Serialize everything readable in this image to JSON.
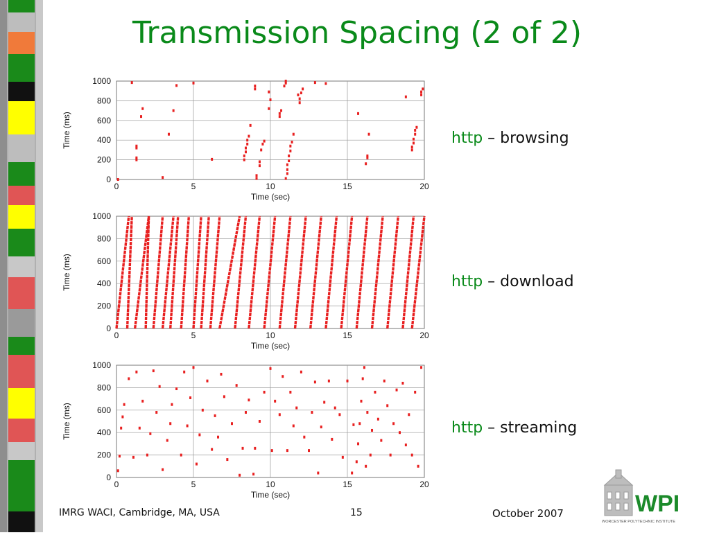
{
  "slide": {
    "title": "Transmission Spacing (2 of 2)",
    "labels": [
      {
        "protocol": "http",
        "rest": " – browsing"
      },
      {
        "protocol": "http",
        "rest": " – download"
      },
      {
        "protocol": "http",
        "rest": " – streaming"
      }
    ],
    "footer": {
      "left": "IMRG WACI, Cambridge, MA, USA",
      "page": "15",
      "date": "October 2007"
    },
    "logo": {
      "text": "WPI",
      "caption": "WORCESTER POLYTECHNIC INSTITUTE"
    }
  },
  "colors": {
    "title": "#0a8a1a",
    "marker": "#e82020",
    "grid": "#999999"
  },
  "chart_data": [
    {
      "type": "scatter",
      "name": "browsing",
      "xlabel": "Time (sec)",
      "ylabel": "Time (ms)",
      "xlim": [
        0,
        20
      ],
      "ylim": [
        0,
        1000
      ],
      "xticks": [
        0,
        5,
        10,
        15,
        20
      ],
      "yticks": [
        0,
        200,
        400,
        600,
        800,
        1000
      ],
      "grid": true,
      "points": [
        [
          0.1,
          0
        ],
        [
          1.0,
          985
        ],
        [
          1.3,
          200
        ],
        [
          1.3,
          220
        ],
        [
          1.3,
          320
        ],
        [
          1.3,
          340
        ],
        [
          1.6,
          640
        ],
        [
          1.7,
          720
        ],
        [
          3.0,
          20
        ],
        [
          3.4,
          460
        ],
        [
          3.7,
          700
        ],
        [
          3.9,
          955
        ],
        [
          5.0,
          980
        ],
        [
          6.2,
          205
        ],
        [
          8.3,
          200
        ],
        [
          8.3,
          240
        ],
        [
          8.4,
          280
        ],
        [
          8.4,
          320
        ],
        [
          8.5,
          360
        ],
        [
          8.5,
          400
        ],
        [
          8.6,
          440
        ],
        [
          8.7,
          550
        ],
        [
          9.0,
          920
        ],
        [
          9.0,
          950
        ],
        [
          9.1,
          10
        ],
        [
          9.1,
          40
        ],
        [
          9.3,
          140
        ],
        [
          9.3,
          180
        ],
        [
          9.4,
          300
        ],
        [
          9.5,
          360
        ],
        [
          9.6,
          390
        ],
        [
          9.9,
          720
        ],
        [
          9.9,
          890
        ],
        [
          10.0,
          810
        ],
        [
          10.6,
          640
        ],
        [
          10.6,
          670
        ],
        [
          10.7,
          700
        ],
        [
          10.9,
          950
        ],
        [
          11.0,
          980
        ],
        [
          11.0,
          1000
        ],
        [
          11.0,
          10
        ],
        [
          11.1,
          60
        ],
        [
          11.1,
          100
        ],
        [
          11.1,
          150
        ],
        [
          11.2,
          190
        ],
        [
          11.2,
          240
        ],
        [
          11.3,
          290
        ],
        [
          11.3,
          340
        ],
        [
          11.4,
          380
        ],
        [
          11.5,
          460
        ],
        [
          11.8,
          860
        ],
        [
          11.9,
          780
        ],
        [
          11.9,
          820
        ],
        [
          12.0,
          880
        ],
        [
          12.1,
          920
        ],
        [
          12.9,
          985
        ],
        [
          13.6,
          975
        ],
        [
          15.7,
          670
        ],
        [
          16.2,
          160
        ],
        [
          16.3,
          220
        ],
        [
          16.3,
          240
        ],
        [
          16.4,
          460
        ],
        [
          18.8,
          840
        ],
        [
          19.2,
          300
        ],
        [
          19.2,
          330
        ],
        [
          19.3,
          370
        ],
        [
          19.3,
          410
        ],
        [
          19.4,
          460
        ],
        [
          19.4,
          500
        ],
        [
          19.5,
          530
        ],
        [
          19.8,
          860
        ],
        [
          19.8,
          890
        ],
        [
          19.9,
          920
        ]
      ]
    },
    {
      "type": "scatter",
      "name": "download",
      "xlabel": "Time (sec)",
      "ylabel": "Time (ms)",
      "xlim": [
        0,
        20
      ],
      "ylim": [
        0,
        1000
      ],
      "xticks": [
        0,
        5,
        10,
        15,
        20
      ],
      "yticks": [
        0,
        200,
        400,
        600,
        800,
        1000
      ],
      "grid": true,
      "streaks": [
        [
          0.0,
          0.8
        ],
        [
          0.7,
          1.0
        ],
        [
          1.2,
          2.1
        ],
        [
          1.9,
          2.1
        ],
        [
          2.4,
          3.0
        ],
        [
          3.0,
          3.7
        ],
        [
          3.5,
          4.0
        ],
        [
          4.2,
          4.7
        ],
        [
          5.0,
          5.5
        ],
        [
          5.5,
          6.0
        ],
        [
          6.1,
          6.7
        ],
        [
          6.7,
          8.0
        ],
        [
          7.7,
          8.4
        ],
        [
          8.6,
          9.3
        ],
        [
          9.6,
          10.3
        ],
        [
          10.6,
          11.3
        ],
        [
          11.6,
          12.3
        ],
        [
          12.6,
          13.3
        ],
        [
          13.6,
          14.3
        ],
        [
          14.6,
          15.3
        ],
        [
          15.6,
          16.3
        ],
        [
          16.6,
          17.3
        ],
        [
          17.6,
          18.3
        ],
        [
          18.6,
          19.3
        ],
        [
          19.2,
          20.0
        ]
      ]
    },
    {
      "type": "scatter",
      "name": "streaming",
      "xlabel": "Time (sec)",
      "ylabel": "Time (ms)",
      "xlim": [
        0,
        20
      ],
      "ylim": [
        0,
        1000
      ],
      "xticks": [
        0,
        5,
        10,
        15,
        20
      ],
      "yticks": [
        0,
        200,
        400,
        600,
        800,
        1000
      ],
      "grid": true,
      "points": [
        [
          0.1,
          60
        ],
        [
          0.2,
          190
        ],
        [
          0.3,
          440
        ],
        [
          0.4,
          540
        ],
        [
          0.5,
          650
        ],
        [
          0.8,
          880
        ],
        [
          1.1,
          180
        ],
        [
          1.3,
          940
        ],
        [
          1.5,
          440
        ],
        [
          1.7,
          680
        ],
        [
          2.0,
          200
        ],
        [
          2.2,
          390
        ],
        [
          2.4,
          950
        ],
        [
          2.6,
          580
        ],
        [
          2.8,
          810
        ],
        [
          3.0,
          70
        ],
        [
          3.3,
          330
        ],
        [
          3.5,
          480
        ],
        [
          3.6,
          650
        ],
        [
          3.9,
          790
        ],
        [
          4.2,
          200
        ],
        [
          4.4,
          940
        ],
        [
          4.6,
          460
        ],
        [
          4.8,
          710
        ],
        [
          5.0,
          980
        ],
        [
          5.2,
          120
        ],
        [
          5.4,
          380
        ],
        [
          5.6,
          600
        ],
        [
          5.9,
          860
        ],
        [
          6.2,
          250
        ],
        [
          6.4,
          550
        ],
        [
          6.6,
          360
        ],
        [
          6.8,
          920
        ],
        [
          7.0,
          720
        ],
        [
          7.2,
          160
        ],
        [
          7.5,
          480
        ],
        [
          7.8,
          820
        ],
        [
          8.0,
          20
        ],
        [
          8.2,
          260
        ],
        [
          8.4,
          580
        ],
        [
          8.6,
          690
        ],
        [
          8.9,
          30
        ],
        [
          9.0,
          260
        ],
        [
          9.3,
          500
        ],
        [
          9.6,
          760
        ],
        [
          10.0,
          970
        ],
        [
          10.1,
          240
        ],
        [
          10.3,
          680
        ],
        [
          10.6,
          560
        ],
        [
          10.8,
          900
        ],
        [
          11.1,
          240
        ],
        [
          11.3,
          760
        ],
        [
          11.5,
          460
        ],
        [
          11.7,
          620
        ],
        [
          12.0,
          940
        ],
        [
          12.2,
          360
        ],
        [
          12.5,
          240
        ],
        [
          12.7,
          580
        ],
        [
          12.9,
          850
        ],
        [
          13.1,
          40
        ],
        [
          13.3,
          450
        ],
        [
          13.5,
          670
        ],
        [
          13.8,
          860
        ],
        [
          14.0,
          340
        ],
        [
          14.2,
          620
        ],
        [
          14.5,
          560
        ],
        [
          14.7,
          180
        ],
        [
          15.0,
          860
        ],
        [
          15.3,
          40
        ],
        [
          15.4,
          470
        ],
        [
          15.6,
          140
        ],
        [
          15.7,
          300
        ],
        [
          15.8,
          480
        ],
        [
          15.9,
          680
        ],
        [
          16.0,
          880
        ],
        [
          16.1,
          980
        ],
        [
          16.2,
          100
        ],
        [
          16.3,
          580
        ],
        [
          16.5,
          200
        ],
        [
          16.6,
          420
        ],
        [
          16.8,
          760
        ],
        [
          17.0,
          520
        ],
        [
          17.2,
          330
        ],
        [
          17.4,
          860
        ],
        [
          17.6,
          640
        ],
        [
          17.8,
          200
        ],
        [
          18.0,
          480
        ],
        [
          18.2,
          780
        ],
        [
          18.4,
          400
        ],
        [
          18.6,
          840
        ],
        [
          18.8,
          290
        ],
        [
          19.0,
          560
        ],
        [
          19.2,
          200
        ],
        [
          19.4,
          760
        ],
        [
          19.6,
          100
        ],
        [
          19.8,
          980
        ]
      ]
    }
  ]
}
